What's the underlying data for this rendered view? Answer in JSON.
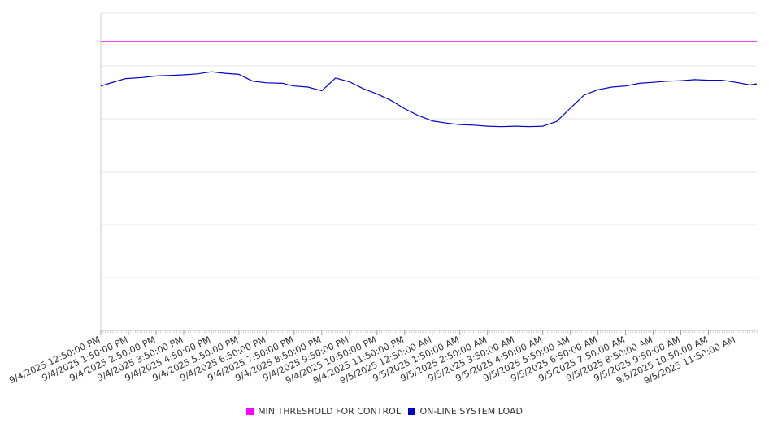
{
  "chart_data": {
    "type": "line",
    "x_tick_labels": [
      "9/4/2025 12:50:00 PM",
      "9/4/2025 1:50:00 PM",
      "9/4/2025 2:50:00 PM",
      "9/4/2025 3:50:00 PM",
      "9/4/2025 4:50:00 PM",
      "9/4/2025 5:50:00 PM",
      "9/4/2025 6:50:00 PM",
      "9/4/2025 7:50:00 PM",
      "9/4/2025 8:50:00 PM",
      "9/4/2025 9:50:00 PM",
      "9/4/2025 10:50:00 PM",
      "9/4/2025 11:50:00 PM",
      "9/5/2025 12:50:00 AM",
      "9/5/2025 1:50:00 AM",
      "9/5/2025 2:50:00 AM",
      "9/5/2025 3:50:00 AM",
      "9/5/2025 4:50:00 AM",
      "9/5/2025 5:50:00 AM",
      "9/5/2025 6:50:00 AM",
      "9/5/2025 7:50:00 AM",
      "9/5/2025 8:50:00 AM",
      "9/5/2025 9:50:00 AM",
      "9/5/2025 10:50:00 AM",
      "9/5/2025 11:50:00 AM"
    ],
    "x_hours": [
      0,
      0.5,
      0.9,
      1.5,
      2,
      2.5,
      3,
      3.5,
      4,
      4.5,
      5,
      5.5,
      6,
      6.6,
      6.8,
      7,
      7.5,
      8,
      8.5,
      9,
      9.5,
      10,
      10.5,
      11,
      11.5,
      12,
      12.5,
      13,
      13.5,
      14,
      14.5,
      15,
      15.5,
      16,
      16.5,
      17,
      17.5,
      18,
      18.5,
      19,
      19.5,
      20,
      20.5,
      21,
      21.5,
      22,
      22.5,
      23,
      23.5,
      23.75
    ],
    "y_range": [
      0,
      600
    ],
    "series": [
      {
        "name": "MIN THRESHOLD FOR CONTROL",
        "color": "#ff00ff",
        "y": [
          546,
          546
        ]
      },
      {
        "name": "ON-LINE SYSTEM LOAD",
        "color": "#0000cc",
        "y": [
          462,
          470,
          476,
          478,
          481,
          482,
          483,
          485,
          489,
          486,
          484,
          471,
          468,
          467,
          464,
          462,
          460,
          453,
          477,
          470,
          457,
          447,
          435,
          419,
          406,
          396,
          392,
          389,
          388,
          386,
          385,
          386,
          385,
          386,
          395,
          420,
          445,
          455,
          460,
          462,
          467,
          469,
          471,
          472,
          474,
          473,
          473,
          469,
          464,
          466
        ]
      }
    ],
    "grid": true,
    "legend_position": "bottom-center"
  }
}
